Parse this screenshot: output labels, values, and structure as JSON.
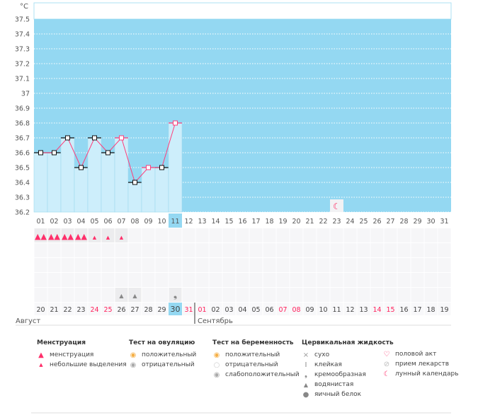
{
  "chart_data": {
    "type": "line",
    "title": "",
    "ylabel": "°C",
    "ylim": [
      36.2,
      37.5
    ],
    "yticks": [
      "37.5",
      "37.4",
      "37.3",
      "37.2",
      "37.1",
      "37",
      "36.9",
      "36.8",
      "36.7",
      "36.6",
      "36.5",
      "36.4",
      "36.3",
      "36.2"
    ],
    "cycle_days": [
      "01",
      "02",
      "03",
      "04",
      "05",
      "06",
      "07",
      "08",
      "09",
      "10",
      "11",
      "12",
      "13",
      "14",
      "15",
      "16",
      "17",
      "18",
      "19",
      "20",
      "21",
      "22",
      "23",
      "24",
      "25",
      "26",
      "27",
      "28",
      "29",
      "30",
      "31"
    ],
    "current_day": "11",
    "series": [
      {
        "name": "temperature",
        "x": [
          1,
          2,
          3,
          4,
          5,
          6,
          7,
          8,
          9,
          10,
          11
        ],
        "values": [
          36.6,
          36.6,
          36.7,
          36.5,
          36.7,
          36.6,
          36.7,
          36.4,
          36.5,
          36.5,
          36.8
        ],
        "highlighted": [
          false,
          false,
          false,
          false,
          false,
          false,
          true,
          false,
          true,
          false,
          true
        ]
      }
    ],
    "dates": [
      "20",
      "21",
      "22",
      "23",
      "24",
      "25",
      "26",
      "27",
      "28",
      "29",
      "30",
      "31",
      "01",
      "02",
      "03",
      "04",
      "05",
      "06",
      "07",
      "08",
      "09",
      "10",
      "11",
      "12",
      "13",
      "14",
      "15",
      "16",
      "17",
      "18",
      "19"
    ],
    "weekend_dates_idx": [
      4,
      5,
      11,
      12,
      18,
      19,
      25,
      26
    ],
    "today_idx": 10,
    "months": [
      "Август",
      "Сентябрь"
    ],
    "menstruation": [
      "heavy",
      "heavy",
      "heavy",
      "heavy",
      "light",
      "light",
      "light"
    ],
    "cervical": {
      "6": "watery",
      "7": "watery",
      "10": "creamy"
    },
    "moon_day_idx": 22
  },
  "colors": {
    "plot_bg": "#94d8f2",
    "bar": "#cdeefb",
    "line": "#ff3d7a",
    "red": "#ff1f5a"
  },
  "legend": {
    "menstruation": {
      "title": "Менструация",
      "items": [
        "менструация",
        "небольшие выделения"
      ]
    },
    "ovulation": {
      "title": "Тест на овуляцию",
      "items": [
        "положительный",
        "отрицательный"
      ]
    },
    "pregnancy": {
      "title": "Тест на беременность",
      "items": [
        "положительный",
        "отрицательный",
        "слабоположительный"
      ]
    },
    "cervical": {
      "title": "Цервикальная жидкость",
      "items": [
        "сухо",
        "клейкая",
        "кремообразная",
        "водянистая",
        "яичный белок"
      ]
    },
    "other": {
      "items": [
        "половой акт",
        "прием лекарств",
        "лунный календарь"
      ]
    }
  }
}
